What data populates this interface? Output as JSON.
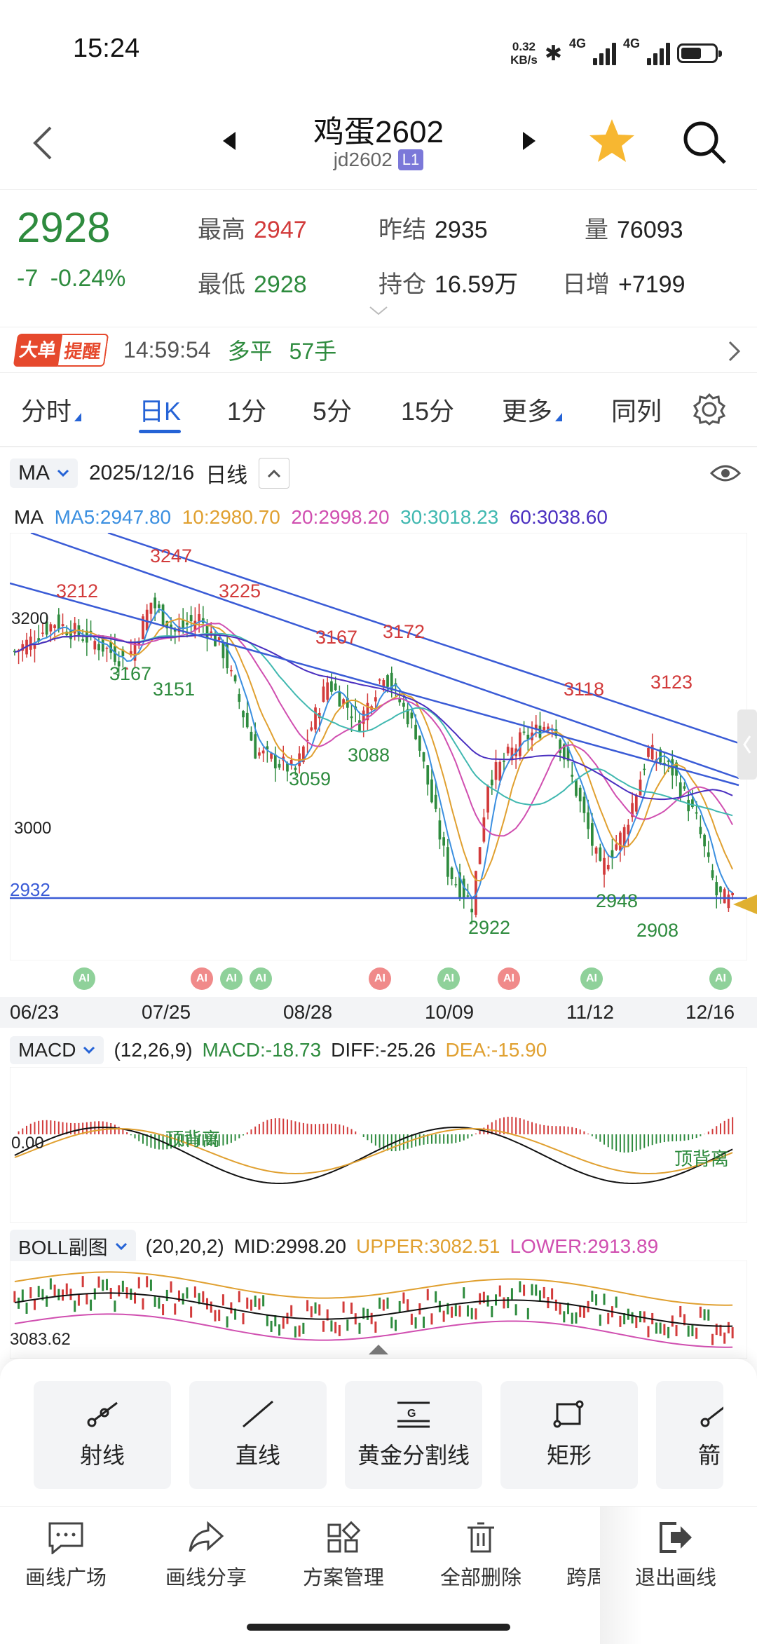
{
  "status_bar": {
    "time": "15:24",
    "net_speed_top": "0.32",
    "net_speed_bottom": "KB/s",
    "net1": "4G",
    "net2": "4G"
  },
  "header": {
    "title": "鸡蛋2602",
    "code": "jd2602",
    "level_badge": "L1"
  },
  "quote": {
    "price": "2928",
    "change": "-7",
    "change_pct": "-0.24%",
    "high_label": "最高",
    "high": "2947",
    "low_label": "最低",
    "low": "2928",
    "prev_settle_label": "昨结",
    "prev_settle": "2935",
    "open_interest_label": "持仓",
    "open_interest": "16.59万",
    "volume_label": "量",
    "volume": "76093",
    "daily_inc_label": "日增",
    "daily_inc": "+7199"
  },
  "alert": {
    "badge1": "大单",
    "badge2": "提醒",
    "time": "14:59:54",
    "type": "多平",
    "qty": "57手"
  },
  "tabs": [
    {
      "label": "分时"
    },
    {
      "label": "日K"
    },
    {
      "label": "1分"
    },
    {
      "label": "5分"
    },
    {
      "label": "15分"
    },
    {
      "label": "更多"
    },
    {
      "label": "同列"
    }
  ],
  "chart_header": {
    "indicator": "MA",
    "date": "2025/12/16",
    "period": "日线"
  },
  "ma": {
    "label": "MA",
    "ma5": "MA5:2947.80",
    "ma10": "10:2980.70",
    "ma20": "20:2998.20",
    "ma30": "30:3018.23",
    "ma60": "60:3038.60"
  },
  "price_chart": {
    "axis_labels": {
      "y3200": "3200",
      "y3000": "3000",
      "y2932": "2932"
    },
    "highs": [
      {
        "v": "3212"
      },
      {
        "v": "3247"
      },
      {
        "v": "3225"
      },
      {
        "v": "3167"
      },
      {
        "v": "3172"
      },
      {
        "v": "3118"
      },
      {
        "v": "3123"
      }
    ],
    "lows": [
      {
        "v": "3167"
      },
      {
        "v": "3151"
      },
      {
        "v": "3059"
      },
      {
        "v": "3088"
      },
      {
        "v": "2922"
      },
      {
        "v": "2948"
      },
      {
        "v": "2908"
      }
    ],
    "ai": "AI"
  },
  "x_axis": [
    "06/23",
    "07/25",
    "08/28",
    "10/09",
    "11/12",
    "12/16"
  ],
  "macd": {
    "label": "MACD",
    "params": "(12,26,9)",
    "macd": "MACD:-18.73",
    "diff": "DIFF:-25.26",
    "dea": "DEA:-15.90",
    "zero": "0.00",
    "div1": "顶背离",
    "div2": "顶背离"
  },
  "boll": {
    "label": "BOLL副图",
    "params": "(20,20,2)",
    "mid": "MID:2998.20",
    "upper": "UPPER:3082.51",
    "lower": "LOWER:2913.89",
    "axis": "3083.62"
  },
  "tools": [
    {
      "label": "射线"
    },
    {
      "label": "直线"
    },
    {
      "label": "黄金分割线"
    },
    {
      "label": "矩形"
    },
    {
      "label": "箭"
    }
  ],
  "bottom_bar": [
    {
      "label": "画线广场"
    },
    {
      "label": "画线分享"
    },
    {
      "label": "方案管理"
    },
    {
      "label": "全部删除"
    },
    {
      "label": "跨周"
    },
    {
      "label": "退出画线"
    }
  ],
  "colors": {
    "up": "#d23b3b",
    "down": "#2e8b3e",
    "accent": "#2563d6",
    "ma5": "#3b8fe0",
    "ma10": "#e0a030",
    "ma20": "#d04fb0",
    "ma30": "#40b8b0",
    "ma60": "#4a2fc0"
  }
}
